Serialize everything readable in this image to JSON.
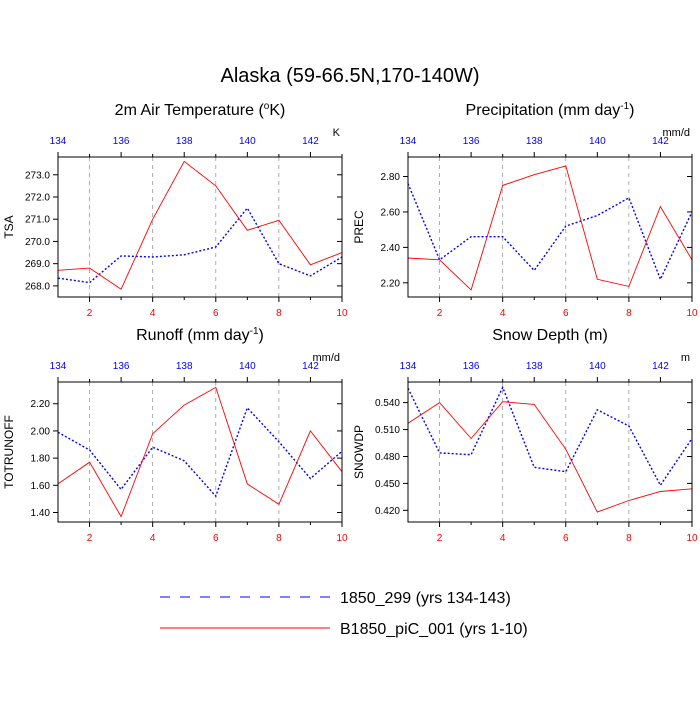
{
  "title": "Alaska (59-66.5N,170-140W)",
  "legend": {
    "entries": [
      {
        "label": "1850_299 (yrs 134-143)",
        "color": "#0000ff",
        "style": "dashed"
      },
      {
        "label": "B1850_piC_001 (yrs 1-10)",
        "color": "#ff0000",
        "style": "solid"
      }
    ]
  },
  "colors": {
    "blue": "#0000ff",
    "red": "#ff0000",
    "grid": "#999999"
  },
  "chart_data": [
    {
      "type": "line",
      "title_base": "2m Air Temperature (",
      "title_sup": "o",
      "title_end": "K)",
      "ylabel": "TSA",
      "unit": "K",
      "x_bottom": [
        1,
        2,
        3,
        4,
        5,
        6,
        7,
        8,
        9,
        10
      ],
      "x_top": [
        134,
        135,
        136,
        137,
        138,
        139,
        140,
        141,
        142,
        143
      ],
      "xlim": [
        1,
        10
      ],
      "bottom_ticks": [
        "2",
        "4",
        "6",
        "8",
        "10"
      ],
      "top_ticks": [
        "134",
        "136",
        "138",
        "140",
        "142"
      ],
      "ylim": [
        267.5,
        273.8
      ],
      "yticks": [
        "268.0",
        "269.0",
        "270.0",
        "271.0",
        "272.0",
        "273.0"
      ],
      "grid_x": [
        2,
        4,
        6,
        8
      ],
      "series": [
        {
          "name": "1850_299 (yrs 134-143)",
          "values": [
            268.35,
            268.15,
            269.35,
            269.3,
            269.4,
            269.75,
            271.5,
            269.0,
            268.45,
            269.3
          ]
        },
        {
          "name": "B1850_piC_001 (yrs 1-10)",
          "values": [
            268.7,
            268.8,
            267.85,
            271.0,
            273.6,
            272.5,
            270.5,
            270.95,
            268.95,
            269.5
          ]
        }
      ]
    },
    {
      "type": "line",
      "title_base": "Precipitation (mm day",
      "title_sup": "-1",
      "title_end": ")",
      "ylabel": "PREC",
      "unit": "mm/d",
      "x_bottom": [
        1,
        2,
        3,
        4,
        5,
        6,
        7,
        8,
        9,
        10
      ],
      "x_top": [
        134,
        135,
        136,
        137,
        138,
        139,
        140,
        141,
        142,
        143
      ],
      "xlim": [
        1,
        10
      ],
      "bottom_ticks": [
        "2",
        "4",
        "6",
        "8",
        "10"
      ],
      "top_ticks": [
        "134",
        "136",
        "138",
        "140",
        "142"
      ],
      "ylim": [
        2.12,
        2.91
      ],
      "yticks": [
        "2.20",
        "2.40",
        "2.60",
        "2.80"
      ],
      "grid_x": [
        2,
        4,
        6,
        8
      ],
      "series": [
        {
          "name": "1850_299 (yrs 134-143)",
          "values": [
            2.76,
            2.33,
            2.46,
            2.46,
            2.27,
            2.52,
            2.58,
            2.68,
            2.22,
            2.6
          ]
        },
        {
          "name": "B1850_piC_001 (yrs 1-10)",
          "values": [
            2.34,
            2.33,
            2.16,
            2.75,
            2.81,
            2.86,
            2.22,
            2.18,
            2.63,
            2.33
          ]
        }
      ]
    },
    {
      "type": "line",
      "title_base": "Runoff (mm day",
      "title_sup": "-1",
      "title_end": ")",
      "ylabel": "TOTRUNOFF",
      "unit": "mm/d",
      "x_bottom": [
        1,
        2,
        3,
        4,
        5,
        6,
        7,
        8,
        9,
        10
      ],
      "x_top": [
        134,
        135,
        136,
        137,
        138,
        139,
        140,
        141,
        142,
        143
      ],
      "xlim": [
        1,
        10
      ],
      "bottom_ticks": [
        "2",
        "4",
        "6",
        "8",
        "10"
      ],
      "top_ticks": [
        "134",
        "136",
        "138",
        "140",
        "142"
      ],
      "ylim": [
        1.33,
        2.36
      ],
      "yticks": [
        "1.40",
        "1.60",
        "1.80",
        "2.00",
        "2.20"
      ],
      "grid_x": [
        2,
        4,
        6,
        8
      ],
      "series": [
        {
          "name": "1850_299 (yrs 134-143)",
          "values": [
            1.99,
            1.86,
            1.57,
            1.88,
            1.78,
            1.52,
            2.17,
            1.92,
            1.65,
            1.85
          ]
        },
        {
          "name": "B1850_piC_001 (yrs 1-10)",
          "values": [
            1.61,
            1.77,
            1.37,
            1.98,
            2.19,
            2.32,
            1.61,
            1.46,
            2.0,
            1.7
          ]
        }
      ]
    },
    {
      "type": "line",
      "title_base": "Snow Depth (m)",
      "title_sup": "",
      "title_end": "",
      "ylabel": "SNOWDP",
      "unit": "m",
      "x_bottom": [
        1,
        2,
        3,
        4,
        5,
        6,
        7,
        8,
        9,
        10
      ],
      "x_top": [
        134,
        135,
        136,
        137,
        138,
        139,
        140,
        141,
        142,
        143
      ],
      "xlim": [
        1,
        10
      ],
      "bottom_ticks": [
        "2",
        "4",
        "6",
        "8",
        "10"
      ],
      "top_ticks": [
        "134",
        "136",
        "138",
        "140",
        "142"
      ],
      "ylim": [
        0.407,
        0.563
      ],
      "yticks": [
        "0.420",
        "0.450",
        "0.480",
        "0.510",
        "0.540"
      ],
      "grid_x": [
        2,
        4,
        6,
        8
      ],
      "series": [
        {
          "name": "1850_299 (yrs 134-143)",
          "values": [
            0.556,
            0.484,
            0.482,
            0.557,
            0.468,
            0.463,
            0.532,
            0.514,
            0.448,
            0.5
          ]
        },
        {
          "name": "B1850_piC_001 (yrs 1-10)",
          "values": [
            0.517,
            0.54,
            0.5,
            0.541,
            0.538,
            0.488,
            0.418,
            0.431,
            0.441,
            0.444
          ]
        }
      ]
    }
  ]
}
